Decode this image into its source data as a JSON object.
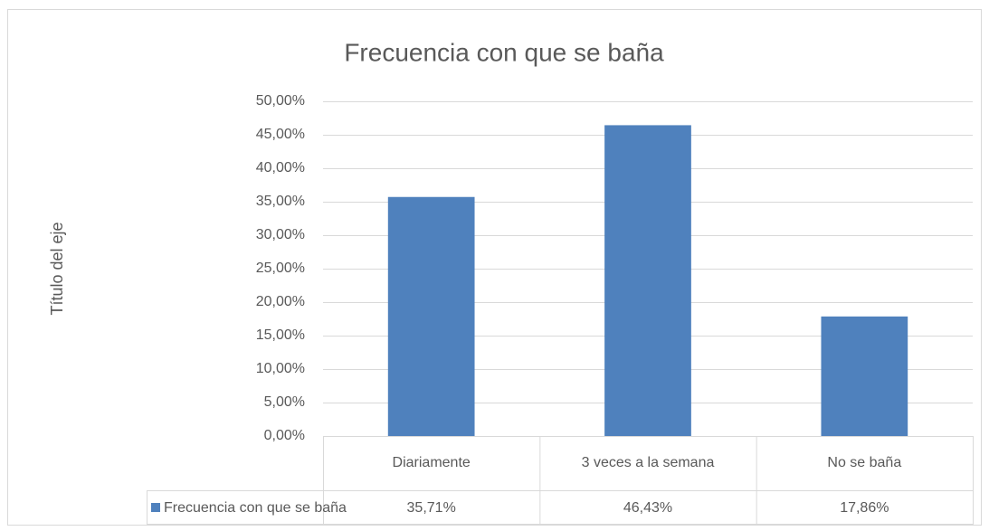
{
  "chart_data": {
    "type": "bar",
    "title": "Frecuencia con que se baña",
    "y_label": "Título del eje",
    "categories": [
      "Diariamente",
      "3 veces a la semana",
      "No se baña"
    ],
    "series": [
      {
        "name": "Frecuencia con que se baña",
        "color": "#4f81bd",
        "values": [
          35.71,
          46.43,
          17.86
        ],
        "value_labels": [
          "35,71%",
          "46,43%",
          "17,86%"
        ]
      }
    ],
    "ylim": [
      0,
      50
    ],
    "yticks": [
      {
        "value": 0,
        "label": "0,00%"
      },
      {
        "value": 5,
        "label": "5,00%"
      },
      {
        "value": 10,
        "label": "10,00%"
      },
      {
        "value": 15,
        "label": "15,00%"
      },
      {
        "value": 20,
        "label": "20,00%"
      },
      {
        "value": 25,
        "label": "25,00%"
      },
      {
        "value": 30,
        "label": "30,00%"
      },
      {
        "value": 35,
        "label": "35,00%"
      },
      {
        "value": 40,
        "label": "40,00%"
      },
      {
        "value": 45,
        "label": "45,00%"
      },
      {
        "value": 50,
        "label": "50,00%"
      }
    ],
    "grid": true,
    "data_table": true
  }
}
